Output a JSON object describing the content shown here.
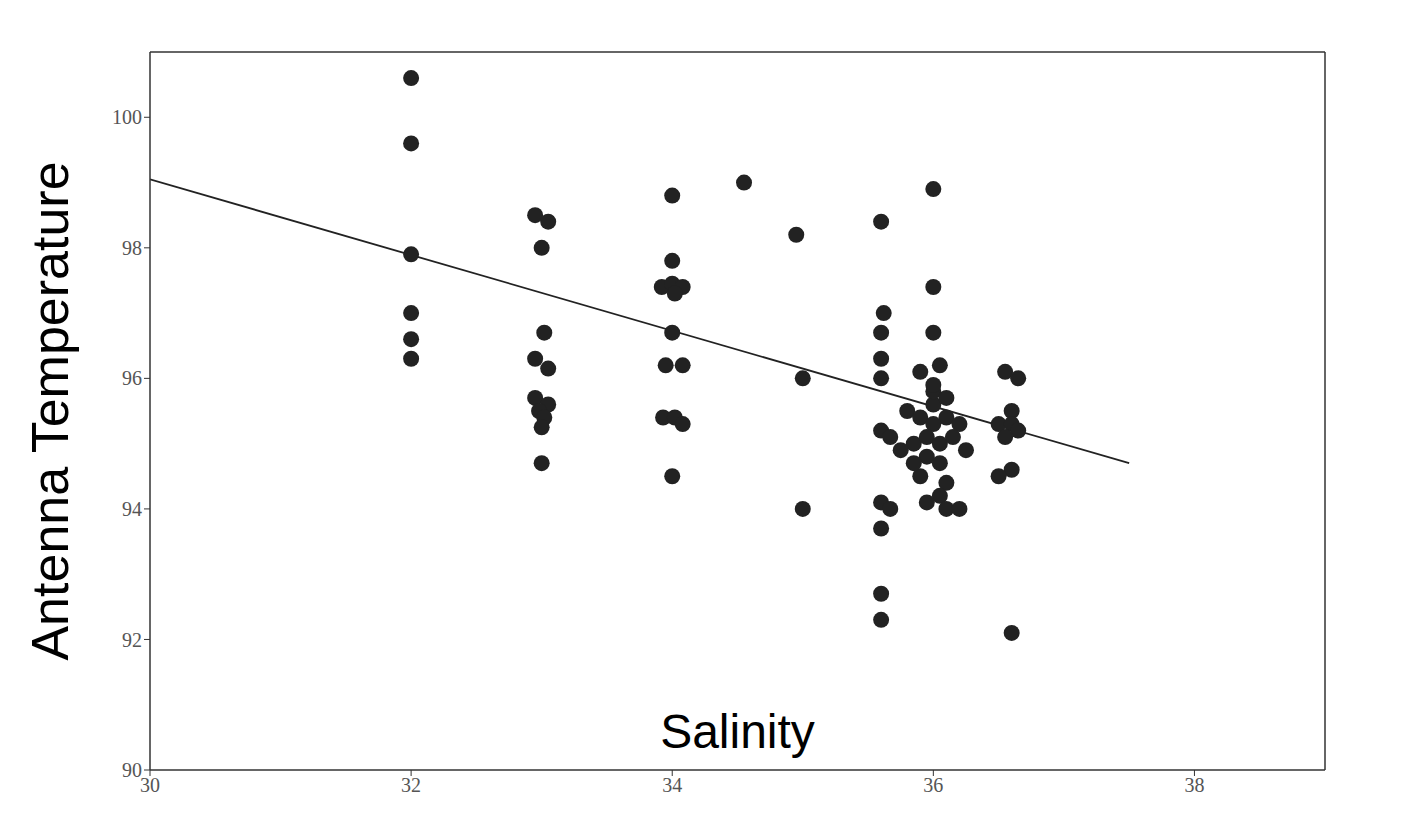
{
  "chart_data": {
    "type": "scatter",
    "x_label": "Salinity",
    "y_label": "Antenna Temperature",
    "xlim": [
      30,
      39
    ],
    "xticks": [
      30,
      32,
      34,
      36,
      38
    ],
    "ylim": [
      90,
      101
    ],
    "yticks": [
      90,
      92,
      94,
      96,
      98,
      100
    ],
    "grid": false,
    "color": "#222222",
    "marker": "circle",
    "x": [
      32,
      32,
      32,
      32,
      32,
      32,
      32.95,
      33.05,
      33.0,
      33.02,
      32.95,
      33.05,
      32.95,
      33.05,
      32.98,
      33.02,
      33.0,
      33.0,
      34.0,
      34.0,
      33.92,
      34.0,
      34.08,
      34.02,
      34.0,
      33.95,
      34.08,
      33.93,
      34.02,
      34.08,
      34.0,
      34.55,
      34.95,
      35.0,
      35.0,
      35.6,
      35.62,
      35.6,
      35.6,
      35.6,
      35.6,
      35.67,
      35.6,
      35.67,
      35.6,
      35.6,
      35.6,
      36.0,
      36.0,
      36.0,
      35.9,
      36.05,
      35.8,
      35.9,
      36.0,
      36.1,
      36.0,
      35.85,
      35.95,
      36.05,
      36.2,
      36.15,
      36.25,
      35.75,
      35.95,
      36.05,
      35.9,
      36.1,
      36.05,
      35.95,
      36.1,
      36.2,
      35.85,
      36.0,
      36.1,
      36.0,
      36.55,
      36.65,
      36.6,
      36.5,
      36.6,
      36.65,
      36.55,
      36.6,
      36.5,
      36.6
    ],
    "values": [
      100.6,
      99.6,
      97.9,
      97.0,
      96.6,
      96.3,
      98.5,
      98.4,
      98.0,
      96.7,
      96.3,
      96.15,
      95.7,
      95.6,
      95.5,
      95.4,
      95.25,
      94.7,
      98.8,
      97.8,
      97.4,
      97.45,
      97.4,
      97.3,
      96.7,
      96.2,
      96.2,
      95.4,
      95.4,
      95.3,
      94.5,
      99.0,
      98.2,
      96.0,
      94.0,
      98.4,
      97.0,
      96.7,
      96.3,
      96.0,
      95.2,
      95.1,
      94.1,
      94.0,
      93.7,
      92.7,
      92.3,
      98.9,
      97.4,
      96.7,
      96.1,
      96.2,
      95.5,
      95.4,
      95.6,
      95.4,
      95.3,
      95.0,
      95.1,
      95.0,
      95.3,
      95.1,
      94.9,
      94.9,
      94.8,
      94.7,
      94.5,
      94.4,
      94.2,
      94.1,
      94.0,
      94.0,
      94.7,
      95.8,
      95.7,
      95.9,
      96.1,
      96.0,
      95.5,
      95.3,
      95.3,
      95.2,
      95.1,
      94.6,
      94.5,
      92.1
    ],
    "trend_line": {
      "x": [
        30,
        37.5
      ],
      "values": [
        99.05,
        94.7
      ]
    }
  }
}
